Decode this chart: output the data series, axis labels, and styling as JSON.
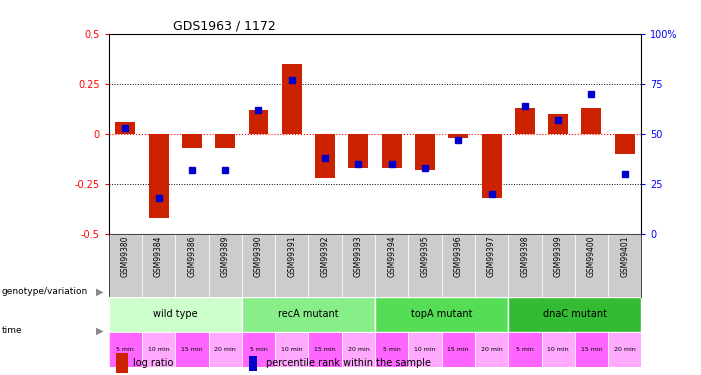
{
  "title": "GDS1963 / 1172",
  "samples": [
    "GSM99380",
    "GSM99384",
    "GSM99386",
    "GSM99389",
    "GSM99390",
    "GSM99391",
    "GSM99392",
    "GSM99393",
    "GSM99394",
    "GSM99395",
    "GSM99396",
    "GSM99397",
    "GSM99398",
    "GSM99399",
    "GSM99400",
    "GSM99401"
  ],
  "log_ratio": [
    0.06,
    -0.42,
    -0.07,
    -0.07,
    0.12,
    0.35,
    -0.22,
    -0.17,
    -0.17,
    -0.18,
    -0.02,
    -0.32,
    0.13,
    0.1,
    0.13,
    -0.1
  ],
  "percentile": [
    53,
    18,
    32,
    32,
    62,
    77,
    38,
    35,
    35,
    33,
    47,
    20,
    64,
    57,
    70,
    30
  ],
  "genotype_groups": [
    {
      "label": "wild type",
      "start": 0,
      "end": 4,
      "color": "#ccffcc"
    },
    {
      "label": "recA mutant",
      "start": 4,
      "end": 8,
      "color": "#88ee88"
    },
    {
      "label": "topA mutant",
      "start": 8,
      "end": 12,
      "color": "#55dd55"
    },
    {
      "label": "dnaC mutant",
      "start": 12,
      "end": 16,
      "color": "#33bb33"
    }
  ],
  "time_labels": [
    "5 min",
    "10 min",
    "15 min",
    "20 min",
    "5 min",
    "10 min",
    "15 min",
    "20 min",
    "5 min",
    "10 min",
    "15 min",
    "20 min",
    "5 min",
    "10 min",
    "15 min",
    "20 min"
  ],
  "bar_color": "#cc2200",
  "dot_color": "#0000cc",
  "ylim": [
    -0.5,
    0.5
  ],
  "yticks_left": [
    -0.5,
    -0.25,
    0,
    0.25,
    0.5
  ],
  "yticks_right": [
    0,
    25,
    50,
    75,
    100
  ],
  "grid_lines": [
    -0.25,
    0,
    0.25
  ],
  "background_color": "#ffffff",
  "label_bg": "#cccccc",
  "time_colors": [
    "#ff66ff",
    "#ffaaff"
  ]
}
